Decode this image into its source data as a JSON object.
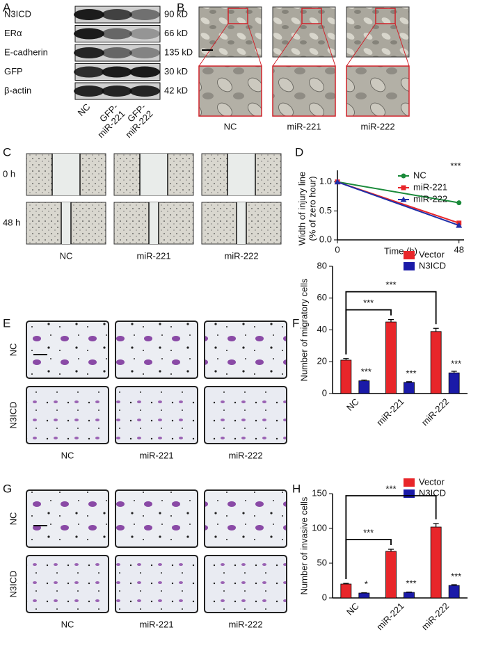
{
  "panel_labels": [
    "A",
    "B",
    "C",
    "D",
    "E",
    "F",
    "G",
    "H"
  ],
  "blot": {
    "proteins": [
      "N3ICD",
      "ERα",
      "E-cadherin",
      "GFP",
      "β-actin"
    ],
    "sizes": [
      "90 kD",
      "66 kD",
      "135 kD",
      "30 kD",
      "42 kD"
    ],
    "lanes": [
      [
        "NC"
      ],
      [
        "GFP-",
        "miR-221"
      ],
      [
        "GFP-",
        "miR-222"
      ]
    ]
  },
  "morphology": {
    "columns": [
      "NC",
      "miR-221",
      "miR-222"
    ]
  },
  "wound_healing": {
    "rows": [
      "0 h",
      "48 h"
    ],
    "columns": [
      "NC",
      "miR-221",
      "miR-222"
    ]
  },
  "migration": {
    "rows": [
      "NC",
      "N3ICD"
    ],
    "columns": [
      "NC",
      "miR-221",
      "miR-222"
    ]
  },
  "invasion": {
    "rows": [
      "NC",
      "N3ICD"
    ],
    "columns": [
      "NC",
      "miR-221",
      "miR-222"
    ]
  },
  "chart_data": [
    {
      "type": "line",
      "xlabel": "Time (h)",
      "ylabel": [
        "Width of injury line",
        "(% of zero hour)"
      ],
      "x": [
        0,
        48
      ],
      "xlim": [
        0,
        50
      ],
      "xticks": [
        0,
        48
      ],
      "ylim": [
        0,
        1.2
      ],
      "yticks": [
        {
          "value": 0,
          "label": "0.0"
        },
        {
          "value": 0.5,
          "label": "0.5"
        },
        {
          "value": 1,
          "label": "1.0"
        }
      ],
      "legend": "top-right",
      "annotations": [
        "***"
      ],
      "series": [
        {
          "name": "NC",
          "color": "#1a8a3a",
          "marker": "circle",
          "values": [
            1,
            0.64
          ]
        },
        {
          "name": "miR-221",
          "color": "#e8262a",
          "marker": "square",
          "values": [
            1,
            0.29
          ]
        },
        {
          "name": "miR-222",
          "color": "#1f2fa8",
          "marker": "triangle",
          "values": [
            1,
            0.25
          ]
        }
      ]
    },
    {
      "type": "bar",
      "categories": [
        "NC",
        "miR-221",
        "miR-222"
      ],
      "ylabel": "Number of migratory cells",
      "ylim": [
        0,
        80
      ],
      "yticks": [
        0,
        20,
        40,
        60,
        80
      ],
      "legend": "top-right",
      "series": [
        {
          "name": "Vector",
          "color": "#e8262a",
          "values": [
            21,
            45,
            39
          ],
          "errors": [
            1,
            1.5,
            2
          ]
        },
        {
          "name": "N3ICD",
          "color": "#1a1aa8",
          "values": [
            8,
            7,
            13
          ],
          "errors": [
            0.5,
            0.5,
            1
          ],
          "significance": [
            "***",
            "***",
            "***"
          ]
        }
      ],
      "comparisons": [
        {
          "label": "***",
          "pair": [
            0,
            1
          ]
        },
        {
          "label": "***",
          "pair": [
            0,
            2
          ]
        }
      ]
    },
    {
      "type": "bar",
      "categories": [
        "NC",
        "miR-221",
        "miR-222"
      ],
      "ylabel": "Number of invasive cells",
      "ylim": [
        0,
        150
      ],
      "yticks": [
        0,
        50,
        100,
        150
      ],
      "legend": "top-right",
      "series": [
        {
          "name": "Vector",
          "color": "#e8262a",
          "values": [
            20,
            67,
            102
          ],
          "errors": [
            1,
            3,
            5
          ]
        },
        {
          "name": "N3ICD",
          "color": "#1a1aa8",
          "values": [
            7,
            8,
            18
          ],
          "errors": [
            0.5,
            0.5,
            1
          ],
          "significance": [
            "*",
            "***",
            "***"
          ]
        }
      ],
      "comparisons": [
        {
          "label": "***",
          "pair": [
            0,
            1
          ]
        },
        {
          "label": "***",
          "pair": [
            0,
            2
          ]
        }
      ]
    }
  ]
}
